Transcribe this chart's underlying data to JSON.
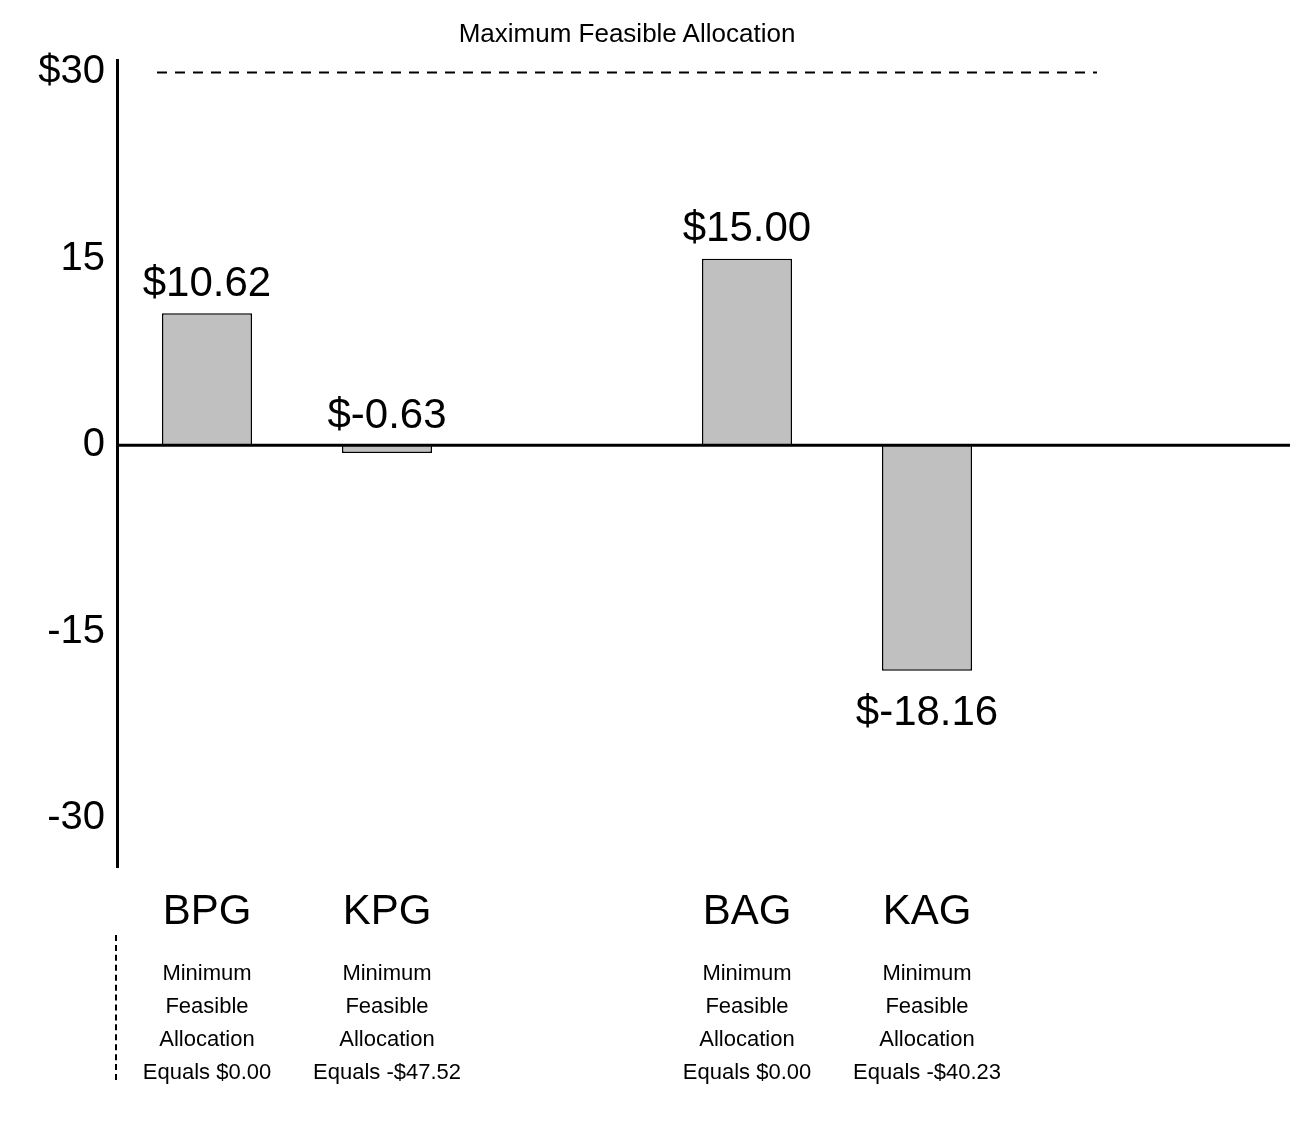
{
  "chart_data": {
    "type": "bar",
    "categories": [
      "BPG",
      "KPG",
      null,
      "BAG",
      "KAG"
    ],
    "values": [
      10.62,
      -0.63,
      null,
      15.0,
      -18.16
    ],
    "value_labels": [
      "$10.62",
      "$-0.63",
      null,
      "$15.00",
      "$-18.16"
    ],
    "color": "#c0c0c0",
    "ylim": [
      -34,
      31
    ],
    "yticks": [
      {
        "value": 30,
        "label": "$30"
      },
      15,
      0,
      -15,
      -30
    ],
    "ref_lines": [
      {
        "axis": "y",
        "value": 30,
        "label": "Maximum Feasible Allocation",
        "line_style": "dashed",
        "color": "#000000"
      }
    ],
    "annotations": [
      "Minimum Feasible Allocation Equals $0.00",
      "Minimum Feasible Allocation Equals -$47.52",
      "Minimum Feasible Allocation Equals $0.00",
      "Minimum Feasible Allocation Equals -$40.23"
    ],
    "grid": false,
    "legend": false
  }
}
